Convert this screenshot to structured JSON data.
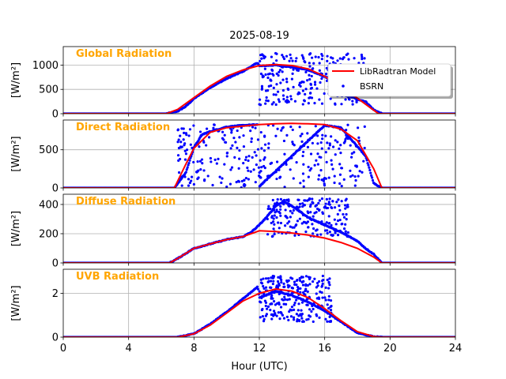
{
  "chart_data": {
    "type": "line",
    "title": "2025-08-19",
    "xlabel": "Hour (UTC)",
    "xlim": [
      0,
      24
    ],
    "xticks": [
      0,
      4,
      8,
      12,
      16,
      20,
      24
    ],
    "legend": {
      "placement": "top-right of first panel",
      "entries": [
        {
          "name": "LibRadtran Model",
          "color": "#ff0000",
          "style": "line"
        },
        {
          "name": "BSRN",
          "color": "#0000ff",
          "style": "dots"
        }
      ]
    },
    "panels": [
      {
        "name": "Global Radiation",
        "ylabel": "[W/m²]",
        "ylim": [
          0,
          1380
        ],
        "yticks": [
          0,
          500,
          1000
        ],
        "model": {
          "x": [
            0,
            6.3,
            7,
            8,
            9,
            10,
            11,
            12,
            13,
            14,
            15,
            16,
            17,
            18,
            18.8,
            19.3,
            24
          ],
          "y": [
            0,
            0,
            90,
            330,
            570,
            770,
            900,
            990,
            1010,
            990,
            920,
            770,
            560,
            320,
            120,
            0,
            0
          ]
        },
        "bsrn": {
          "x": [
            0,
            6.3,
            7,
            7.5,
            8,
            9,
            10,
            11,
            11.9,
            12,
            13,
            14,
            15,
            16,
            16.5,
            17,
            18,
            18.5,
            19,
            19.5,
            24
          ],
          "y": [
            0,
            0,
            50,
            150,
            310,
            540,
            720,
            870,
            1050,
            980,
            1000,
            960,
            900,
            760,
            700,
            420,
            300,
            250,
            80,
            0,
            0
          ],
          "scatter": {
            "x_start": 12,
            "x_end": 18.5,
            "y_min": 180,
            "y_max": 1250,
            "count": 260
          }
        },
        "title_color": "#ffa500"
      },
      {
        "name": "Direct Radiation",
        "ylabel": "[W/m²]",
        "ylim": [
          0,
          890
        ],
        "yticks": [
          0,
          500
        ],
        "model": {
          "x": [
            0,
            6.8,
            7.5,
            8,
            9,
            10,
            11,
            12,
            13,
            14,
            15,
            16,
            17,
            18,
            19,
            19.5,
            24
          ],
          "y": [
            0,
            0,
            310,
            520,
            730,
            790,
            810,
            830,
            840,
            845,
            840,
            830,
            770,
            620,
            250,
            0,
            0
          ]
        },
        "bsrn": {
          "x": [
            0,
            6.8,
            7.5,
            8,
            8.5,
            9,
            10,
            11,
            11.9,
            12,
            16,
            17,
            18.5,
            19,
            19.5,
            24
          ],
          "y": [
            0,
            0,
            200,
            530,
            700,
            740,
            800,
            820,
            830,
            20,
            820,
            790,
            420,
            60,
            0,
            0
          ],
          "scatter": {
            "x_start": 7,
            "x_end": 18.5,
            "y_min": 0,
            "y_max": 830,
            "count": 320
          }
        },
        "title_color": "#ffa500"
      },
      {
        "name": "Diffuse Radiation",
        "ylabel": "[W/m²]",
        "ylim": [
          0,
          470
        ],
        "yticks": [
          0,
          200,
          400
        ],
        "model": {
          "x": [
            0,
            6.5,
            7,
            8,
            9,
            10,
            11,
            12,
            13,
            14,
            15,
            16,
            17,
            18,
            19,
            19.5,
            24
          ],
          "y": [
            0,
            0,
            30,
            100,
            130,
            160,
            180,
            220,
            215,
            205,
            190,
            170,
            140,
            100,
            40,
            0,
            0
          ]
        },
        "bsrn": {
          "x": [
            0,
            6.5,
            7,
            8,
            9,
            10,
            11,
            11.5,
            12,
            12.5,
            13,
            13.5,
            14,
            15,
            16,
            17,
            18,
            18.5,
            19,
            19.5,
            24
          ],
          "y": [
            0,
            0,
            30,
            100,
            130,
            160,
            180,
            210,
            260,
            320,
            390,
            420,
            390,
            310,
            260,
            210,
            150,
            100,
            60,
            0,
            0
          ],
          "scatter": {
            "x_start": 12.5,
            "x_end": 17.5,
            "y_min": 180,
            "y_max": 440,
            "count": 200
          }
        },
        "title_color": "#ffa500"
      },
      {
        "name": "UVB Radiation",
        "ylabel": "[W/m²]",
        "ylim": [
          0,
          3.1
        ],
        "yticks": [
          0,
          2
        ],
        "model": {
          "x": [
            0,
            7,
            8,
            9,
            10,
            11,
            12,
            13,
            14,
            15,
            16,
            17,
            18,
            19,
            19.5,
            24
          ],
          "y": [
            0,
            0,
            0.15,
            0.55,
            1.1,
            1.65,
            2.0,
            2.2,
            2.1,
            1.8,
            1.3,
            0.75,
            0.25,
            0.03,
            0,
            0
          ]
        },
        "bsrn": {
          "x": [
            0,
            7,
            8,
            9,
            10,
            11,
            11.9,
            12,
            13,
            14,
            15,
            16,
            17,
            18,
            19,
            19.5,
            24
          ],
          "y": [
            0,
            0,
            0.15,
            0.6,
            1.15,
            1.75,
            2.3,
            1.8,
            2.1,
            1.9,
            1.6,
            1.2,
            0.7,
            0.2,
            0.02,
            0,
            0
          ],
          "scatter": {
            "x_start": 12,
            "x_end": 16.5,
            "y_min": 0.7,
            "y_max": 2.8,
            "count": 260
          }
        },
        "title_color": "#ffa500"
      }
    ]
  }
}
